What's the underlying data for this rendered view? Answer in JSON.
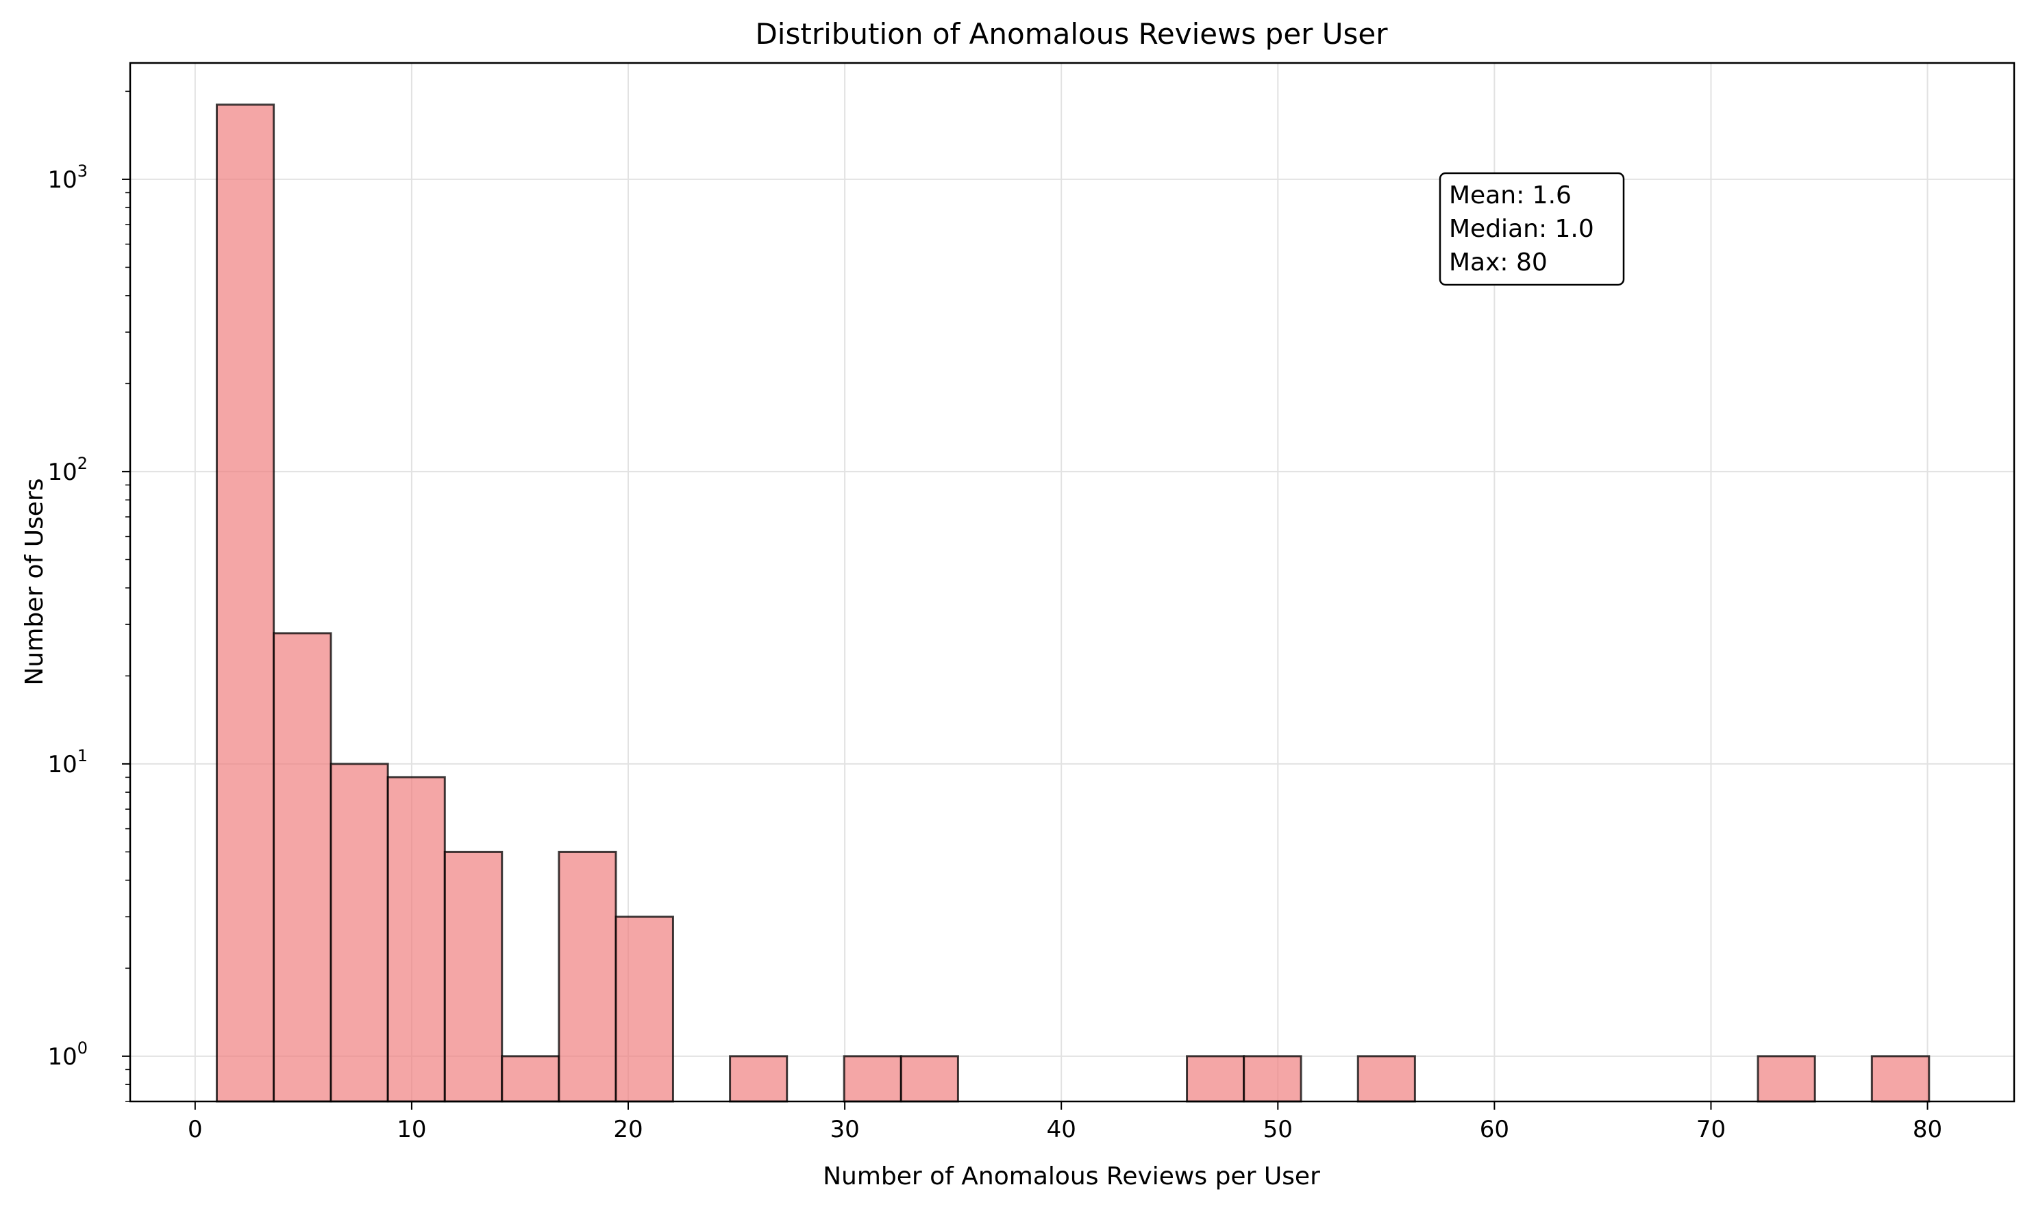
{
  "chart_data": {
    "type": "bar",
    "title": "Distribution of Anomalous Reviews per User",
    "xlabel": "Number of Anomalous Reviews per User",
    "ylabel": "Number of Users",
    "xlim": [
      -3,
      84
    ],
    "ylim": [
      0.7,
      2500
    ],
    "yscale": "log",
    "grid": true,
    "x_ticks": [
      "0",
      "10",
      "20",
      "30",
      "40",
      "50",
      "60",
      "70",
      "80"
    ],
    "y_ticks": [
      {
        "base": "10",
        "exp": "0"
      },
      {
        "base": "10",
        "exp": "1"
      },
      {
        "base": "10",
        "exp": "2"
      },
      {
        "base": "10",
        "exp": "3"
      }
    ],
    "bins": [
      {
        "x0": 1.0,
        "x1": 3.63,
        "count": 1800
      },
      {
        "x0": 3.63,
        "x1": 6.27,
        "count": 28
      },
      {
        "x0": 6.27,
        "x1": 8.9,
        "count": 10
      },
      {
        "x0": 8.9,
        "x1": 11.53,
        "count": 9
      },
      {
        "x0": 11.53,
        "x1": 14.17,
        "count": 5
      },
      {
        "x0": 14.17,
        "x1": 16.8,
        "count": 1
      },
      {
        "x0": 16.8,
        "x1": 19.43,
        "count": 5
      },
      {
        "x0": 19.43,
        "x1": 22.07,
        "count": 3
      },
      {
        "x0": 24.7,
        "x1": 27.33,
        "count": 1
      },
      {
        "x0": 29.97,
        "x1": 32.6,
        "count": 1
      },
      {
        "x0": 32.6,
        "x1": 35.23,
        "count": 1
      },
      {
        "x0": 45.8,
        "x1": 48.43,
        "count": 1
      },
      {
        "x0": 48.43,
        "x1": 51.07,
        "count": 1
      },
      {
        "x0": 53.7,
        "x1": 56.33,
        "count": 1
      },
      {
        "x0": 72.17,
        "x1": 74.8,
        "count": 1
      },
      {
        "x0": 77.43,
        "x1": 80.07,
        "count": 1
      }
    ],
    "bar_color": "#f08080",
    "bar_edge_color": "#000000",
    "annotation": {
      "lines": [
        "Mean: 1.6",
        "Median: 1.0",
        "Max: 80"
      ],
      "placement": "top-right"
    }
  }
}
